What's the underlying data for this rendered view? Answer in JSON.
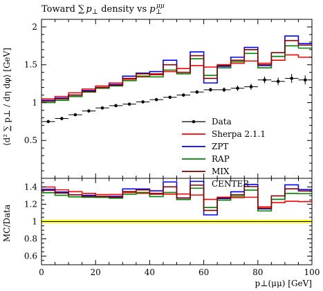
{
  "chart_data": {
    "type": "line",
    "title_prefix": "Toward ∑",
    "title_p": "p",
    "title_sub": "⊥",
    "title_mid": " density vs ",
    "title_p2": "p",
    "title_sub2": "⊥",
    "title_sup2": "μμ",
    "ylabel": "⟨d² ∑ p⊥ / dη dφ⟩ [GeV]",
    "ratio_ylabel": "MC/Data",
    "xlabel": "p⊥(μμ) [GeV]",
    "xlim": [
      0,
      100
    ],
    "ylim": [
      0,
      2.1
    ],
    "ratio_ylim": [
      0.5,
      1.5
    ],
    "x_ticks": [
      0,
      20,
      40,
      60,
      80,
      100
    ],
    "y_ticks": [
      0.5,
      1,
      1.5,
      2
    ],
    "ratio_y_ticks": [
      0.6,
      0.8,
      1,
      1.2,
      1.4
    ],
    "bin_edges": [
      0,
      5,
      10,
      15,
      20,
      25,
      30,
      35,
      40,
      45,
      50,
      55,
      60,
      65,
      70,
      75,
      80,
      85,
      90,
      95,
      100
    ],
    "data": {
      "name": "Data",
      "color": "#000000",
      "x": [
        2.5,
        7.5,
        12.5,
        17.5,
        22.5,
        27.5,
        32.5,
        37.5,
        42.5,
        47.5,
        52.5,
        57.5,
        62.5,
        67.5,
        72.5,
        77.5,
        82.5,
        87.5,
        92.5,
        97.5
      ],
      "y": [
        0.75,
        0.79,
        0.84,
        0.89,
        0.93,
        0.96,
        0.98,
        1.01,
        1.04,
        1.07,
        1.1,
        1.14,
        1.17,
        1.17,
        1.19,
        1.21,
        1.3,
        1.28,
        1.32,
        1.3
      ],
      "err": [
        0.015,
        0.015,
        0.015,
        0.015,
        0.015,
        0.015,
        0.015,
        0.015,
        0.02,
        0.02,
        0.02,
        0.025,
        0.025,
        0.03,
        0.035,
        0.04,
        0.045,
        0.05,
        0.06,
        0.06
      ]
    },
    "series": [
      {
        "name": "Sherpa 2.1.1",
        "color": "#ff0000",
        "values": [
          1.05,
          1.08,
          1.13,
          1.18,
          1.22,
          1.26,
          1.31,
          1.34,
          1.38,
          1.41,
          1.45,
          1.49,
          1.47,
          1.5,
          1.52,
          1.55,
          1.52,
          1.56,
          1.63,
          1.6
        ]
      },
      {
        "name": "ZPT",
        "color": "#0000ff",
        "values": [
          1.03,
          1.06,
          1.1,
          1.16,
          1.2,
          1.24,
          1.35,
          1.39,
          1.41,
          1.56,
          1.4,
          1.67,
          1.26,
          1.48,
          1.6,
          1.73,
          1.49,
          1.61,
          1.88,
          1.78
        ]
      },
      {
        "name": "RAP",
        "color": "#008000",
        "values": [
          1.0,
          1.03,
          1.08,
          1.14,
          1.19,
          1.22,
          1.29,
          1.35,
          1.34,
          1.43,
          1.38,
          1.58,
          1.36,
          1.46,
          1.54,
          1.65,
          1.46,
          1.61,
          1.75,
          1.72
        ]
      },
      {
        "name": "MIX",
        "color": "#800000",
        "values": [
          1.02,
          1.05,
          1.1,
          1.15,
          1.2,
          1.23,
          1.32,
          1.38,
          1.37,
          1.5,
          1.4,
          1.62,
          1.32,
          1.49,
          1.56,
          1.7,
          1.5,
          1.66,
          1.82,
          1.76
        ]
      }
    ],
    "legend_extra": "CENTER",
    "legend_position": "bottom-right"
  }
}
